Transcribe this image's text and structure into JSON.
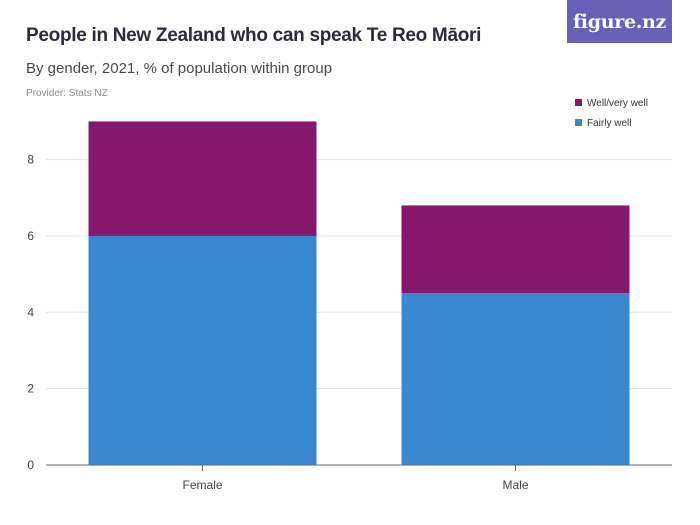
{
  "header": {
    "title": "People in New Zealand who can speak Te Reo Māori",
    "subtitle": "By gender, 2021, % of population within group",
    "provider": "Provider: Stats NZ",
    "logo_text": "figure.nz"
  },
  "colors": {
    "fairly_well": "#3a88d0",
    "well_very_well": "#86196e",
    "grid": "#e3e3e3",
    "axis": "#666666",
    "logo_bg": "#6a5fb8"
  },
  "chart_data": {
    "type": "bar",
    "stacked": true,
    "categories": [
      "Female",
      "Male"
    ],
    "series": [
      {
        "name": "Fairly well",
        "values": [
          6.0,
          4.5
        ]
      },
      {
        "name": "Well/very well",
        "values": [
          3.0,
          2.3
        ]
      }
    ],
    "yticks": [
      0,
      2,
      4,
      6,
      8
    ],
    "ylim": [
      0,
      9.3
    ],
    "grid": true,
    "legend_position": "top-right",
    "xlabel": "",
    "ylabel": ""
  }
}
